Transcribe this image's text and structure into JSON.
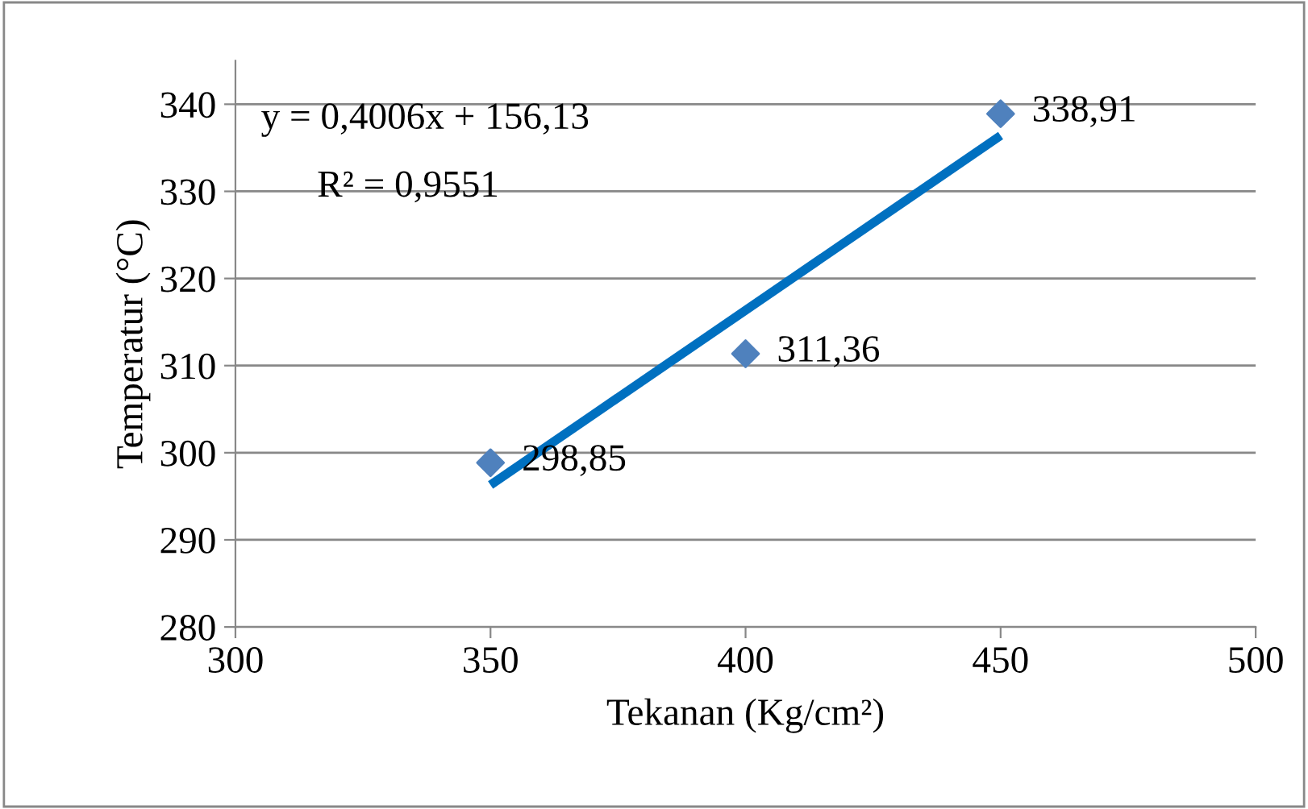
{
  "chart_data": {
    "type": "scatter",
    "xlabel": "Tekanan (Kg/cm²)",
    "ylabel": "Temperatur (°C)",
    "xlim": [
      300,
      500
    ],
    "xticks": [
      300,
      350,
      400,
      450,
      500
    ],
    "ylim": [
      280,
      345
    ],
    "yticks": [
      280,
      290,
      300,
      310,
      320,
      330,
      340
    ],
    "grid": "y",
    "legend": false,
    "series": [
      {
        "color": "#4f81bd",
        "marker": "diamond",
        "x": [
          350,
          400,
          450
        ],
        "values": [
          298.85,
          311.36,
          338.91
        ],
        "value_labels": [
          "298,85",
          "311,36",
          "338,91"
        ]
      },
      {
        "type": "line",
        "color": "#0070c0",
        "marker": "none",
        "line_style": "solid",
        "x": [
          350,
          450
        ],
        "values": [
          296.3,
          336.4
        ]
      }
    ],
    "annotations": [
      "y = 0,4006x + 156,13",
      "R² = 0,9551"
    ]
  }
}
